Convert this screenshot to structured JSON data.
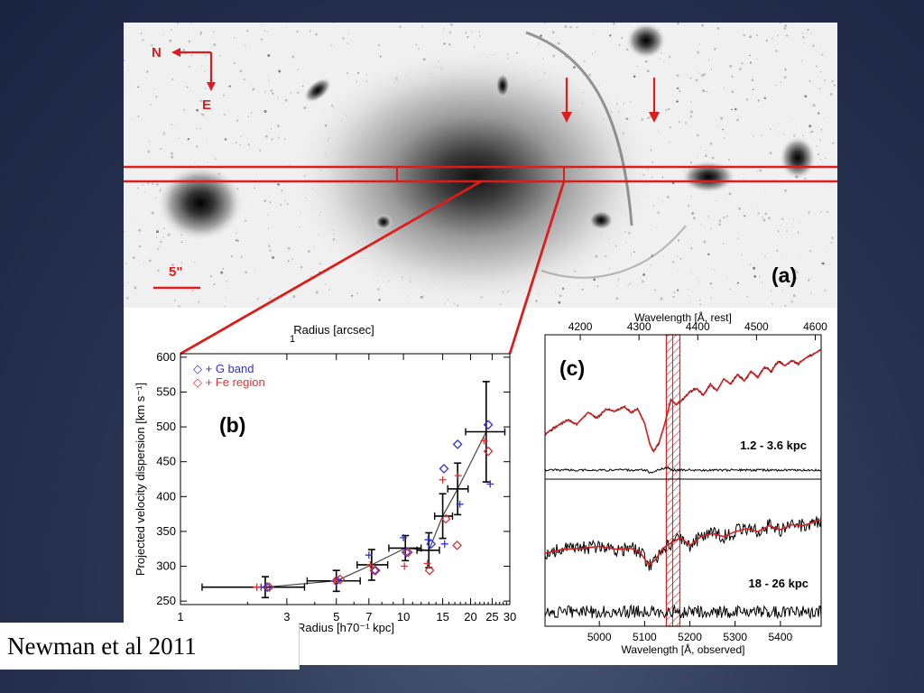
{
  "slide": {
    "citation": "Newman et al 2011"
  },
  "panel_a": {
    "label": "(a)",
    "compass_n": "N",
    "compass_e": "E",
    "scale_bar_label": "5\""
  },
  "colors": {
    "accent": "#dd1c1c",
    "g_band": "#3333cc",
    "fe_region": "#dd3333",
    "axis": "#000000"
  },
  "chart_data": [
    {
      "type": "scatter",
      "panel_label": "(b)",
      "xlabel": "Radius [h70⁻¹ kpc]",
      "xlabel_top": "Radius [arcsec]",
      "ylabel": "Projected velocity dispersion [km s⁻¹]",
      "xscale": "log",
      "xlim": [
        1,
        30
      ],
      "ylim": [
        245,
        605
      ],
      "xticks": [
        1,
        3,
        5,
        7,
        10,
        15,
        20,
        25,
        30
      ],
      "xtick_labels": [
        "1",
        "3",
        "5",
        "7",
        "10",
        "15",
        "20",
        "25",
        "30"
      ],
      "yticks": [
        250,
        300,
        350,
        400,
        450,
        500,
        550,
        600
      ],
      "top_ticks": [
        1
      ],
      "top_tick_labels": [
        "1"
      ],
      "legend": [
        "◇ + G band",
        "◇ + Fe region"
      ],
      "legend_position": "top-left",
      "series": [
        {
          "name": "combined",
          "marker": "line-errorbar",
          "points": [
            {
              "x": 2.4,
              "y": 270,
              "xerr": [
                1.25,
                3.6
              ],
              "yerr": 15
            },
            {
              "x": 5.0,
              "y": 279,
              "xerr": [
                3.7,
                6.4
              ],
              "yerr": 15
            },
            {
              "x": 7.2,
              "y": 302,
              "xerr": [
                6.2,
                8.5
              ],
              "yerr": 22
            },
            {
              "x": 10.2,
              "y": 326,
              "xerr": [
                8.6,
                12.0
              ],
              "yerr": 18
            },
            {
              "x": 13.0,
              "y": 323,
              "xerr": [
                11.5,
                14.5
              ],
              "yerr": 25
            },
            {
              "x": 15.0,
              "y": 372,
              "xerr": [
                13.8,
                16.6
              ],
              "yerr": 32
            },
            {
              "x": 17.5,
              "y": 411,
              "xerr": [
                15.8,
                19.5
              ],
              "yerr": 37
            },
            {
              "x": 23.5,
              "y": 493,
              "xerr": [
                19.0,
                28.5
              ],
              "yerr": 72
            }
          ]
        },
        {
          "name": "G band (diamond)",
          "marker": "diamond",
          "points": [
            [
              2.45,
              270
            ],
            [
              5.0,
              279
            ],
            [
              7.5,
              294
            ],
            [
              10.3,
              320
            ],
            [
              13.3,
              332
            ],
            [
              15.2,
              440
            ],
            [
              17.5,
              475
            ],
            [
              24.0,
              503
            ]
          ]
        },
        {
          "name": "G band (plus)",
          "marker": "plus",
          "points": [
            [
              2.3,
              270
            ],
            [
              5.1,
              281
            ],
            [
              7.0,
              316
            ],
            [
              10.0,
              341
            ],
            [
              12.9,
              338
            ],
            [
              15.3,
              332
            ],
            [
              17.9,
              389
            ],
            [
              24.5,
              418
            ]
          ]
        },
        {
          "name": "Fe region (diamond)",
          "marker": "diamond",
          "points": [
            [
              2.5,
              270
            ],
            [
              5.2,
              281
            ],
            [
              7.4,
              294
            ],
            [
              10.5,
              320
            ],
            [
              13.1,
              294
            ],
            [
              15.5,
              368
            ],
            [
              17.4,
              330
            ],
            [
              24.0,
              465
            ]
          ]
        },
        {
          "name": "Fe region (plus)",
          "marker": "plus",
          "points": [
            [
              2.2,
              270
            ],
            [
              4.9,
              279
            ],
            [
              7.1,
              302
            ],
            [
              10.1,
              300
            ],
            [
              12.8,
              304
            ],
            [
              15.0,
              424
            ],
            [
              17.6,
              430
            ],
            [
              23.0,
              480
            ]
          ]
        }
      ]
    },
    {
      "type": "line",
      "panel_label": "(c)",
      "xlabel": "Wavelength [Å, observed]",
      "xlabel_top": "Wavelength [Å, rest]",
      "xlim": [
        4880,
        5490
      ],
      "top_xlim": [
        4140,
        4610
      ],
      "xticks": [
        5000,
        5100,
        5200,
        5300,
        5400
      ],
      "top_ticks": [
        4200,
        4300,
        4400,
        4500,
        4600
      ],
      "highlight_band": [
        5148,
        5178
      ],
      "highlight_line": 5162,
      "subpanels": [
        {
          "label": "1.2 - 3.6 kpc",
          "spectrum": [
            [
              4880,
              0.2
            ],
            [
              4905,
              0.27
            ],
            [
              4930,
              0.33
            ],
            [
              4950,
              0.29
            ],
            [
              4975,
              0.4
            ],
            [
              4995,
              0.35
            ],
            [
              5015,
              0.43
            ],
            [
              5035,
              0.41
            ],
            [
              5055,
              0.45
            ],
            [
              5070,
              0.4
            ],
            [
              5085,
              0.43
            ],
            [
              5100,
              0.3
            ],
            [
              5112,
              0.1
            ],
            [
              5120,
              0.04
            ],
            [
              5132,
              0.12
            ],
            [
              5145,
              0.3
            ],
            [
              5158,
              0.52
            ],
            [
              5170,
              0.47
            ],
            [
              5185,
              0.52
            ],
            [
              5200,
              0.59
            ],
            [
              5215,
              0.62
            ],
            [
              5230,
              0.56
            ],
            [
              5245,
              0.66
            ],
            [
              5260,
              0.6
            ],
            [
              5275,
              0.71
            ],
            [
              5290,
              0.66
            ],
            [
              5305,
              0.75
            ],
            [
              5320,
              0.69
            ],
            [
              5335,
              0.78
            ],
            [
              5350,
              0.72
            ],
            [
              5365,
              0.82
            ],
            [
              5380,
              0.78
            ],
            [
              5395,
              0.87
            ],
            [
              5410,
              0.83
            ],
            [
              5425,
              0.88
            ],
            [
              5440,
              0.85
            ],
            [
              5455,
              0.9
            ],
            [
              5470,
              0.93
            ],
            [
              5490,
              0.98
            ]
          ],
          "residual": [
            [
              4880,
              0.0
            ],
            [
              5105,
              0.0
            ],
            [
              5112,
              -0.06
            ],
            [
              5120,
              -0.02
            ],
            [
              5150,
              0.05
            ],
            [
              5160,
              0.0
            ],
            [
              5490,
              0.0
            ]
          ]
        },
        {
          "label": "18 - 26 kpc",
          "spectrum": [
            [
              4880,
              0.52
            ],
            [
              4920,
              0.56
            ],
            [
              4960,
              0.57
            ],
            [
              5000,
              0.59
            ],
            [
              5040,
              0.56
            ],
            [
              5070,
              0.57
            ],
            [
              5090,
              0.53
            ],
            [
              5110,
              0.4
            ],
            [
              5125,
              0.46
            ],
            [
              5140,
              0.57
            ],
            [
              5160,
              0.63
            ],
            [
              5180,
              0.68
            ],
            [
              5200,
              0.6
            ],
            [
              5225,
              0.69
            ],
            [
              5250,
              0.72
            ],
            [
              5275,
              0.69
            ],
            [
              5300,
              0.74
            ],
            [
              5325,
              0.77
            ],
            [
              5350,
              0.74
            ],
            [
              5375,
              0.8
            ],
            [
              5400,
              0.76
            ],
            [
              5425,
              0.81
            ],
            [
              5450,
              0.8
            ],
            [
              5475,
              0.84
            ],
            [
              5490,
              0.86
            ]
          ],
          "noise": 0.07,
          "residual_noise": 0.07
        }
      ]
    }
  ]
}
